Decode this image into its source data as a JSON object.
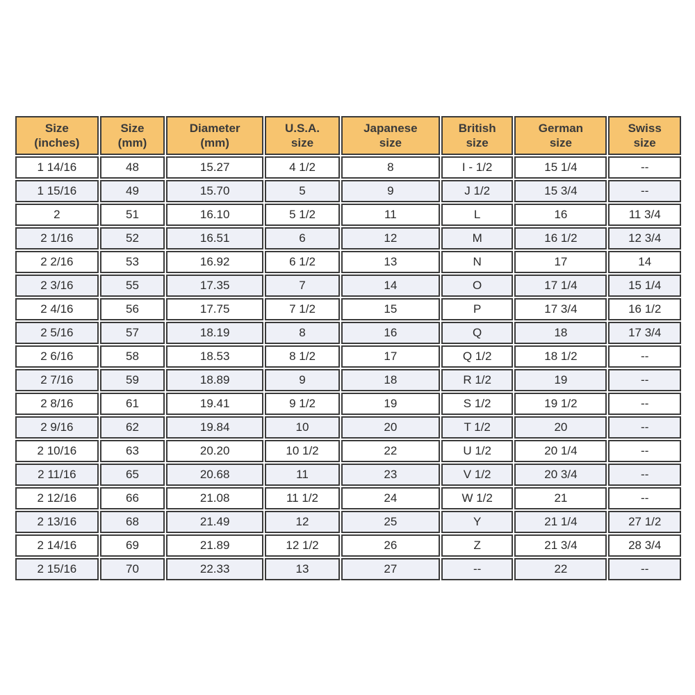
{
  "table": {
    "headers": [
      [
        "Size",
        "(inches)"
      ],
      [
        "Size",
        "(mm)"
      ],
      [
        "Diameter",
        "(mm)"
      ],
      [
        "U.S.A.",
        "size"
      ],
      [
        "Japanese",
        "size"
      ],
      [
        "British",
        "size"
      ],
      [
        "German",
        "size"
      ],
      [
        "Swiss",
        "size"
      ]
    ],
    "rows": [
      [
        "1 14/16",
        "48",
        "15.27",
        "4 1/2",
        "8",
        "I - 1/2",
        "15 1/4",
        "--"
      ],
      [
        "1 15/16",
        "49",
        "15.70",
        "5",
        "9",
        "J 1/2",
        "15 3/4",
        "--"
      ],
      [
        "2",
        "51",
        "16.10",
        "5 1/2",
        "11",
        "L",
        "16",
        "11 3/4"
      ],
      [
        "2 1/16",
        "52",
        "16.51",
        "6",
        "12",
        "M",
        "16 1/2",
        "12 3/4"
      ],
      [
        "2 2/16",
        "53",
        "16.92",
        "6 1/2",
        "13",
        "N",
        "17",
        "14"
      ],
      [
        "2 3/16",
        "55",
        "17.35",
        "7",
        "14",
        "O",
        "17 1/4",
        "15 1/4"
      ],
      [
        "2 4/16",
        "56",
        "17.75",
        "7 1/2",
        "15",
        "P",
        "17 3/4",
        "16 1/2"
      ],
      [
        "2 5/16",
        "57",
        "18.19",
        "8",
        "16",
        "Q",
        "18",
        "17 3/4"
      ],
      [
        "2 6/16",
        "58",
        "18.53",
        "8 1/2",
        "17",
        "Q 1/2",
        "18 1/2",
        "--"
      ],
      [
        "2 7/16",
        "59",
        "18.89",
        "9",
        "18",
        "R 1/2",
        "19",
        "--"
      ],
      [
        "2 8/16",
        "61",
        "19.41",
        "9 1/2",
        "19",
        "S 1/2",
        "19 1/2",
        "--"
      ],
      [
        "2 9/16",
        "62",
        "19.84",
        "10",
        "20",
        "T 1/2",
        "20",
        "--"
      ],
      [
        "2 10/16",
        "63",
        "20.20",
        "10 1/2",
        "22",
        "U 1/2",
        "20 1/4",
        "--"
      ],
      [
        "2 11/16",
        "65",
        "20.68",
        "11",
        "23",
        "V 1/2",
        "20 3/4",
        "--"
      ],
      [
        "2 12/16",
        "66",
        "21.08",
        "11 1/2",
        "24",
        "W 1/2",
        "21",
        "--"
      ],
      [
        "2 13/16",
        "68",
        "21.49",
        "12",
        "25",
        "Y",
        "21 1/4",
        "27 1/2"
      ],
      [
        "2 14/16",
        "69",
        "21.89",
        "12 1/2",
        "26",
        "Z",
        "21 3/4",
        "28 3/4"
      ],
      [
        "2 15/16",
        "70",
        "22.33",
        "13",
        "27",
        "--",
        "22",
        "--"
      ]
    ]
  },
  "colors": {
    "header_bg": "#f7c46f",
    "row_alt_bg": "#eef0f7",
    "border": "#3a3a3a"
  }
}
